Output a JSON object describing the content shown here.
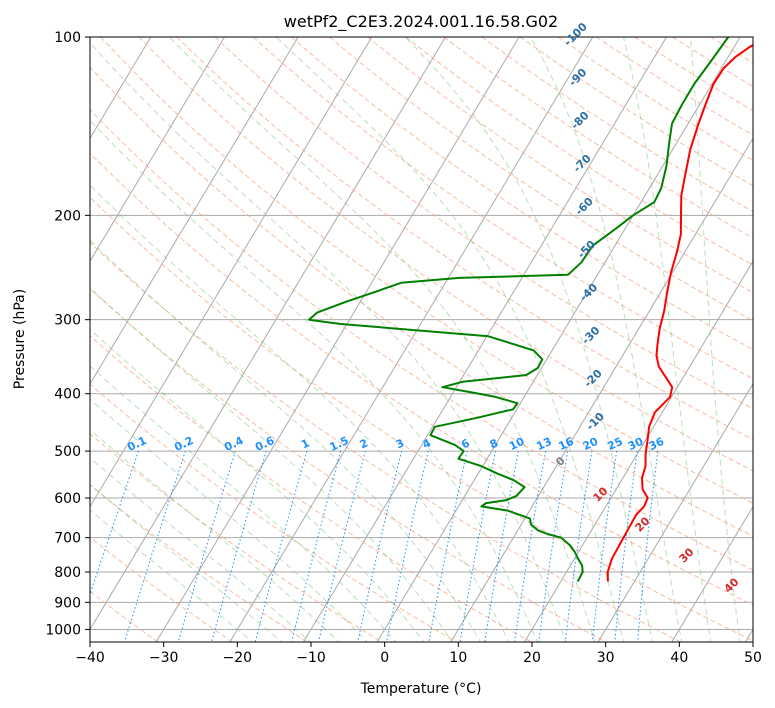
{
  "chart_data": {
    "type": "line",
    "title": "wetPf2_C2E3.2024.001.16.58.G02",
    "xlabel": "Temperature (°C)",
    "ylabel": "Pressure (hPa)",
    "xlim": [
      -40,
      50
    ],
    "ylim": [
      1050,
      100
    ],
    "y_scale": "log",
    "x_ticks": [
      -40,
      -30,
      -20,
      -10,
      0,
      10,
      20,
      30,
      40,
      50
    ],
    "y_ticks": [
      100,
      200,
      300,
      400,
      500,
      600,
      700,
      800,
      900,
      1000
    ],
    "grid": true,
    "skew_label_values": {
      "dry_adiabats": [
        "-100",
        "-90",
        "-80",
        "-70",
        "-60",
        "-50",
        "-40",
        "-30",
        "-20",
        "-10"
      ],
      "mixing_ratios": [
        "0.1",
        "0.2",
        "0.4",
        "0.6",
        "1",
        "1.5",
        "2",
        "3",
        "4",
        "6",
        "8",
        "10",
        "13",
        "16",
        "20",
        "25",
        "30",
        "36"
      ],
      "moist_adiabats": [
        "0",
        "10",
        "20",
        "30",
        "40"
      ]
    },
    "series": [
      {
        "color": "#ff0000",
        "points": [
          {
            "p": 830,
            "t": 26.4
          },
          {
            "p": 800,
            "t": 25.6
          },
          {
            "p": 760,
            "t": 25.1
          },
          {
            "p": 720,
            "t": 25.0
          },
          {
            "p": 680,
            "t": 24.9
          },
          {
            "p": 640,
            "t": 24.8
          },
          {
            "p": 620,
            "t": 25.2
          },
          {
            "p": 600,
            "t": 25.0
          },
          {
            "p": 580,
            "t": 23.6
          },
          {
            "p": 555,
            "t": 22.6
          },
          {
            "p": 530,
            "t": 22.1
          },
          {
            "p": 505,
            "t": 21.1
          },
          {
            "p": 480,
            "t": 20.3
          },
          {
            "p": 455,
            "t": 19.4
          },
          {
            "p": 430,
            "t": 19.0
          },
          {
            "p": 405,
            "t": 19.8
          },
          {
            "p": 390,
            "t": 19.3
          },
          {
            "p": 375,
            "t": 17.6
          },
          {
            "p": 360,
            "t": 15.8
          },
          {
            "p": 345,
            "t": 14.6
          },
          {
            "p": 330,
            "t": 13.8
          },
          {
            "p": 310,
            "t": 12.8
          },
          {
            "p": 290,
            "t": 12.0
          },
          {
            "p": 270,
            "t": 10.9
          },
          {
            "p": 250,
            "t": 9.8
          },
          {
            "p": 230,
            "t": 8.9
          },
          {
            "p": 215,
            "t": 8.0
          },
          {
            "p": 200,
            "t": 6.5
          },
          {
            "p": 185,
            "t": 4.9
          },
          {
            "p": 170,
            "t": 3.7
          },
          {
            "p": 155,
            "t": 2.4
          },
          {
            "p": 140,
            "t": 1.4
          },
          {
            "p": 130,
            "t": 0.8
          },
          {
            "p": 120,
            "t": 0.2
          },
          {
            "p": 113,
            "t": 0.3
          },
          {
            "p": 108,
            "t": 1.0
          },
          {
            "p": 104,
            "t": 2.1
          },
          {
            "p": 100,
            "t": 3.5
          }
        ]
      },
      {
        "color": "#008000",
        "points": [
          {
            "p": 830,
            "t": 22.3
          },
          {
            "p": 800,
            "t": 22.2
          },
          {
            "p": 780,
            "t": 21.6
          },
          {
            "p": 760,
            "t": 20.5
          },
          {
            "p": 740,
            "t": 19.5
          },
          {
            "p": 720,
            "t": 18.2
          },
          {
            "p": 700,
            "t": 16.5
          },
          {
            "p": 690,
            "t": 14.3
          },
          {
            "p": 680,
            "t": 12.7
          },
          {
            "p": 665,
            "t": 11.3
          },
          {
            "p": 650,
            "t": 10.7
          },
          {
            "p": 630,
            "t": 7.0
          },
          {
            "p": 620,
            "t": 3.1
          },
          {
            "p": 612,
            "t": 3.5
          },
          {
            "p": 605,
            "t": 6.0
          },
          {
            "p": 595,
            "t": 7.0
          },
          {
            "p": 575,
            "t": 7.4
          },
          {
            "p": 560,
            "t": 5.4
          },
          {
            "p": 545,
            "t": 2.5
          },
          {
            "p": 530,
            "t": -0.2
          },
          {
            "p": 515,
            "t": -3.9
          },
          {
            "p": 500,
            "t": -3.8
          },
          {
            "p": 488,
            "t": -5.5
          },
          {
            "p": 470,
            "t": -9.6
          },
          {
            "p": 455,
            "t": -9.7
          },
          {
            "p": 440,
            "t": -4.9
          },
          {
            "p": 425,
            "t": -0.5
          },
          {
            "p": 415,
            "t": -0.4
          },
          {
            "p": 405,
            "t": -3.9
          },
          {
            "p": 398,
            "t": -7.5
          },
          {
            "p": 390,
            "t": -11.9
          },
          {
            "p": 382,
            "t": -9.6
          },
          {
            "p": 372,
            "t": -1.5
          },
          {
            "p": 362,
            "t": -0.5
          },
          {
            "p": 350,
            "t": -0.6
          },
          {
            "p": 338,
            "t": -2.5
          },
          {
            "p": 320,
            "t": -9.8
          },
          {
            "p": 305,
            "t": -31.0
          },
          {
            "p": 300,
            "t": -35.5
          },
          {
            "p": 292,
            "t": -35.0
          },
          {
            "p": 280,
            "t": -32.0
          },
          {
            "p": 270,
            "t": -29.0
          },
          {
            "p": 260,
            "t": -26.0
          },
          {
            "p": 255,
            "t": -18.5
          },
          {
            "p": 252,
            "t": -4.0
          },
          {
            "p": 240,
            "t": -3.2
          },
          {
            "p": 225,
            "t": -3.0
          },
          {
            "p": 210,
            "t": -1.2
          },
          {
            "p": 200,
            "t": 0.0
          },
          {
            "p": 190,
            "t": 1.8
          },
          {
            "p": 180,
            "t": 1.6
          },
          {
            "p": 165,
            "t": 0.5
          },
          {
            "p": 150,
            "t": -1.1
          },
          {
            "p": 140,
            "t": -2.2
          },
          {
            "p": 130,
            "t": -2.4
          },
          {
            "p": 120,
            "t": -2.4
          },
          {
            "p": 110,
            "t": -2.0
          },
          {
            "p": 100,
            "t": -1.6
          }
        ]
      }
    ]
  }
}
